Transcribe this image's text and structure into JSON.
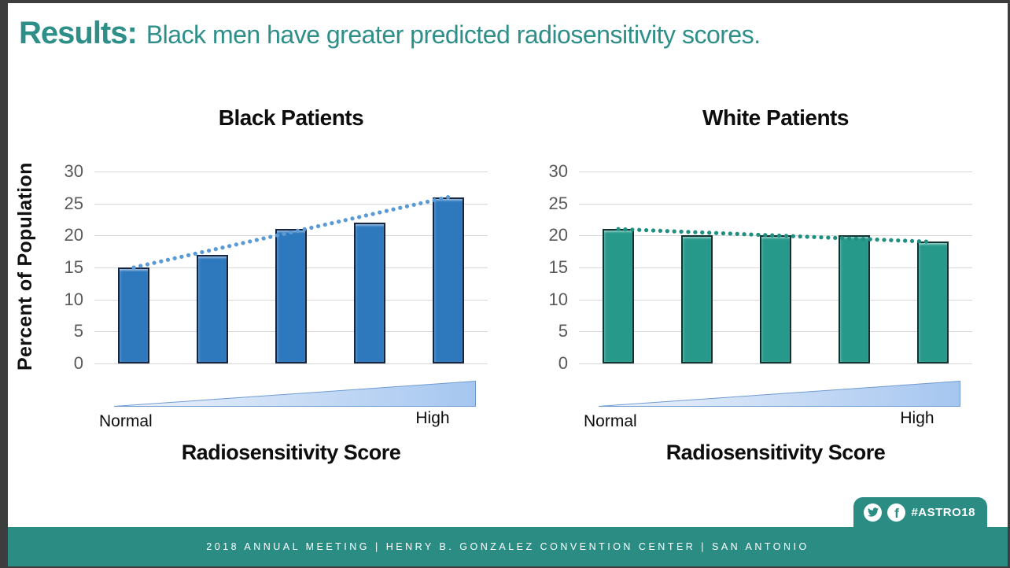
{
  "slide": {
    "title": {
      "prefix": "Results:",
      "rest": "Black men have greater predicted radiosensitivity scores."
    },
    "accent_color": "#2E8F88"
  },
  "chart_data": [
    {
      "type": "bar",
      "title": "Black Patients",
      "values": [
        15,
        17,
        21,
        22,
        26
      ],
      "ylabel": "Percent of Population",
      "xlabel": "Radiosensitivity Score",
      "x_annotation": {
        "left": "Normal",
        "right": "High",
        "shape": "gradient-wedge"
      },
      "ylim": [
        0,
        30
      ],
      "yticks": [
        0,
        5,
        10,
        15,
        20,
        25,
        30
      ],
      "grid": "horizontal",
      "legend": "none",
      "trendline": {
        "style": "dotted",
        "from_value": 15,
        "to_value": 26
      },
      "bar_color": "#2e78be",
      "bar_border_color": "#16243f",
      "trend_color": "#5b9bd5"
    },
    {
      "type": "bar",
      "title": "White Patients",
      "values": [
        21,
        20,
        20,
        20,
        19
      ],
      "ylabel": "",
      "xlabel": "Radiosensitivity Score",
      "x_annotation": {
        "left": "Normal",
        "right": "High",
        "shape": "gradient-wedge"
      },
      "ylim": [
        0,
        30
      ],
      "yticks": [
        0,
        5,
        10,
        15,
        20,
        25,
        30
      ],
      "grid": "horizontal",
      "legend": "none",
      "trendline": {
        "style": "dotted",
        "from_value": 21,
        "to_value": 19
      },
      "bar_color": "#27998b",
      "bar_border_color": "#12332f",
      "trend_color": "#1f8f81"
    }
  ],
  "footer": {
    "text": "2018 ANNUAL MEETING | HENRY B. GONZALEZ CONVENTION CENTER | SAN ANTONIO",
    "bar_color": "#2B8C84",
    "badge": {
      "hashtag": "#ASTRO18",
      "icons": [
        "twitter-icon",
        "facebook-icon"
      ]
    }
  }
}
